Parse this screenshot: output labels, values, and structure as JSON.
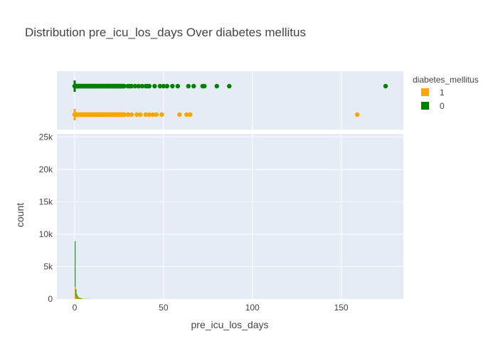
{
  "chart_data": {
    "type": "histogram",
    "title": "Distribution pre_icu_los_days Over diabetes mellitus",
    "xlabel": "pre_icu_los_days",
    "ylabel": "count",
    "xlim": [
      -10,
      185
    ],
    "ylim": [
      0,
      25500
    ],
    "x_ticks": [
      0,
      50,
      100,
      150
    ],
    "x_tick_labels": [
      "0",
      "50",
      "100",
      "150"
    ],
    "y_ticks": [
      0,
      5000,
      10000,
      15000,
      20000,
      25000
    ],
    "y_tick_labels": [
      "0",
      "5k",
      "10k",
      "15k",
      "20k",
      "25k"
    ],
    "grid": true,
    "legend": {
      "title": "diabetes_mellitus",
      "placement": "top-right",
      "entries": [
        {
          "label": "1",
          "color": "#FFA500"
        },
        {
          "label": "0",
          "color": "#008000"
        }
      ]
    },
    "series": [
      {
        "name": "0",
        "color": "#008000",
        "histogram": {
          "bin_width": 0.5,
          "bins_x": [
            0,
            0.5,
            1,
            1.5,
            2,
            2.5,
            3,
            3.5,
            4,
            5,
            6,
            7,
            8
          ],
          "counts": [
            8950,
            1500,
            700,
            400,
            250,
            180,
            130,
            100,
            80,
            60,
            40,
            30,
            20
          ]
        },
        "strip_points": [
          0,
          1,
          2,
          3,
          5,
          8,
          10,
          12,
          15,
          18,
          20,
          22,
          25,
          28,
          30,
          31,
          32,
          34,
          36,
          38,
          40,
          41,
          42,
          45,
          48,
          50,
          52,
          55,
          58,
          64,
          67,
          72,
          73,
          80,
          87,
          175
        ]
      },
      {
        "name": "1",
        "color": "#FFA500",
        "histogram": {
          "bin_width": 0.5,
          "bins_x": [
            0,
            0.5,
            1,
            1.5,
            2,
            2.5,
            3,
            3.5,
            4,
            5,
            6,
            7
          ],
          "counts": [
            1900,
            600,
            300,
            180,
            120,
            80,
            60,
            45,
            35,
            25,
            18,
            12
          ]
        },
        "strip_points": [
          0,
          1,
          2,
          3,
          5,
          7,
          10,
          12,
          15,
          18,
          20,
          22,
          25,
          28,
          30,
          32,
          35,
          37,
          40,
          42,
          44,
          46,
          49,
          59,
          63,
          65,
          159
        ]
      }
    ]
  }
}
